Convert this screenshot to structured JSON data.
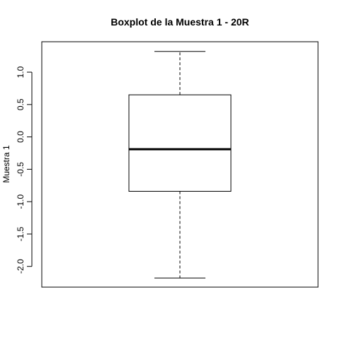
{
  "chart_data": {
    "type": "boxplot",
    "title": "Boxplot de la Muestra 1 - 20R",
    "xlabel": "",
    "ylabel": "Muestra 1",
    "ylim": [
      -2.32,
      1.47
    ],
    "yticks": [
      -2.0,
      -1.5,
      -1.0,
      -0.5,
      0.0,
      0.5,
      1.0
    ],
    "ytick_labels": [
      "-2.0",
      "-1.5",
      "-1.0",
      "-0.5",
      "0.0",
      "0.5",
      "1.0"
    ],
    "grid": false,
    "legend": "none",
    "box": {
      "min": -2.18,
      "q1": -0.84,
      "median": -0.19,
      "q3": 0.65,
      "max": 1.32
    }
  }
}
